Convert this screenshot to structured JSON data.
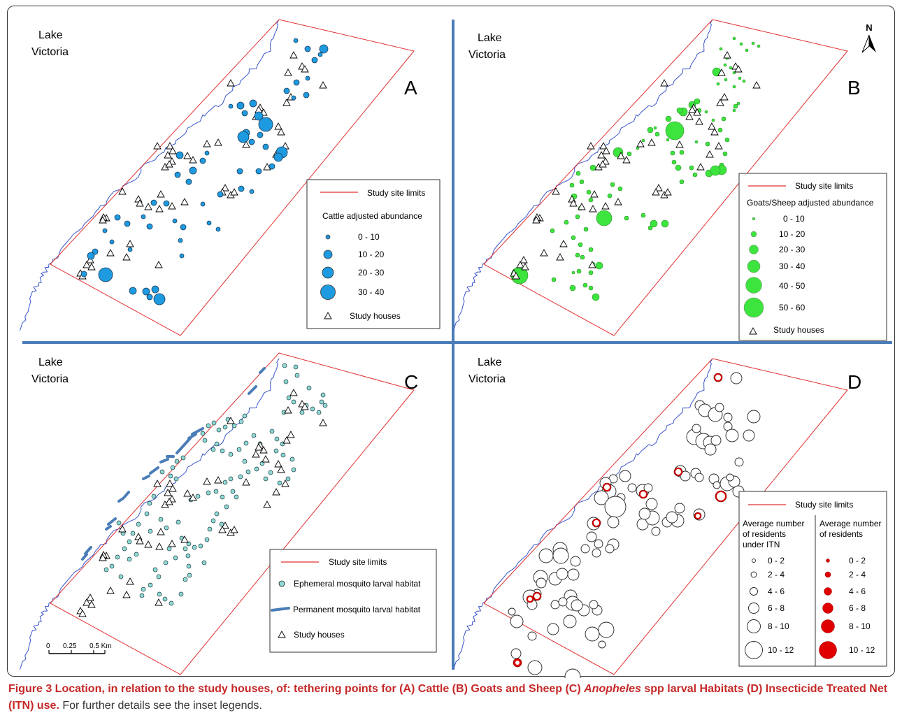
{
  "panels": [
    {
      "id": "A",
      "lake_line1": "Lake",
      "lake_line2": "Victoria",
      "letter": "A"
    },
    {
      "id": "B",
      "lake_line1": "Lake",
      "lake_line2": "Victoria",
      "letter": "B"
    },
    {
      "id": "C",
      "lake_line1": "Lake",
      "lake_line2": "Victoria",
      "letter": "C"
    },
    {
      "id": "D",
      "lake_line1": "Lake",
      "lake_line2": "Victoria",
      "letter": "D"
    }
  ],
  "north_arrow": "N",
  "legend_a": {
    "limits": "Study site limits",
    "title": "Cattle adjusted abundance",
    "classes": [
      "0 - 10",
      "10 - 20",
      "20 - 30",
      "30 - 40"
    ],
    "houses": "Study houses"
  },
  "legend_b": {
    "limits": "Study site limits",
    "title": "Goats/Sheep adjusted abundance",
    "classes": [
      "0 - 10",
      "10 - 20",
      "20 - 30",
      "30 - 40",
      "40 - 50",
      "50 - 60"
    ],
    "houses": "Study houses"
  },
  "legend_c": {
    "limits": "Study site limits",
    "ephemeral": "Ephemeral mosquito larval habitat",
    "permanent": "Permanent mosquito larval habitat",
    "houses": "Study houses"
  },
  "legend_d": {
    "limits": "Study site limits",
    "left_title": [
      "Average number",
      "of residents",
      "under ITN"
    ],
    "right_title": [
      "Average number",
      "of residents"
    ],
    "classes": [
      "0 - 2",
      "2 - 4",
      "4 - 6",
      "6 - 8",
      "8 - 10",
      "10 - 12"
    ]
  },
  "scale_bar": {
    "ticks": [
      "0",
      "0.25",
      "0.5 Km"
    ]
  },
  "caption": {
    "bold_part1": "Figure 3 Location, in relation to the study houses, of: tethering points for (A) Cattle (B) Goats and Sheep (C) ",
    "bold_italic": "Anopheles",
    "bold_part2": " spp larval Habitats (D) Insecticide Treated Net (ITN) use.",
    "rest": " For further details see the inset legends."
  },
  "colors": {
    "cattle": "#1e9be0",
    "goats": "#3de43d",
    "larval": "#8ed9d6",
    "permanent": "#4a7db8",
    "itn_red": "#e00000",
    "limits": "#e03030",
    "divider": "#4a7db8"
  }
}
